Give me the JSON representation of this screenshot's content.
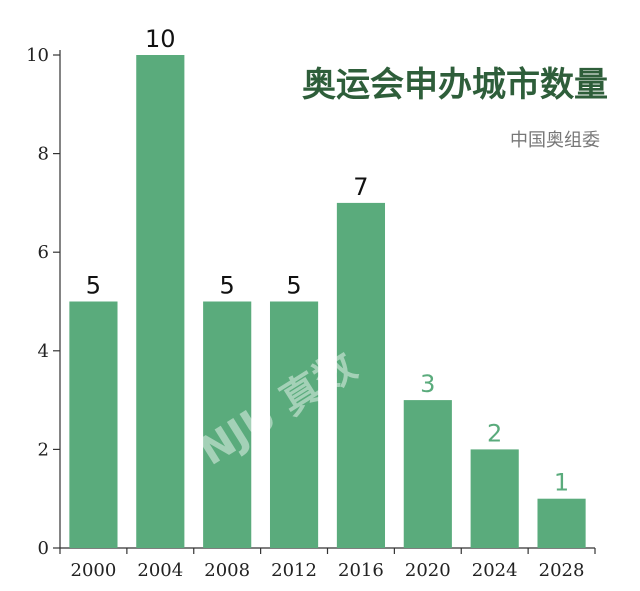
{
  "chart_data": {
    "type": "bar",
    "title": "奥运会申办城市数量",
    "subtitle": "中国奥组委",
    "categories": [
      "2000",
      "2004",
      "2008",
      "2012",
      "2016",
      "2020",
      "2024",
      "2028"
    ],
    "values": [
      5,
      10,
      5,
      5,
      7,
      3,
      2,
      1
    ],
    "ylim": [
      0,
      10
    ],
    "yticks": [
      "0",
      "2",
      "4",
      "6",
      "8",
      "10"
    ],
    "xlabel": "",
    "ylabel": "",
    "grid": false,
    "bar_color": "#5aab7c",
    "label_color_dark": "#111111",
    "label_color_green": "#5aab7c",
    "green_label_from_index": 5
  },
  "watermark": "NJU 真数"
}
